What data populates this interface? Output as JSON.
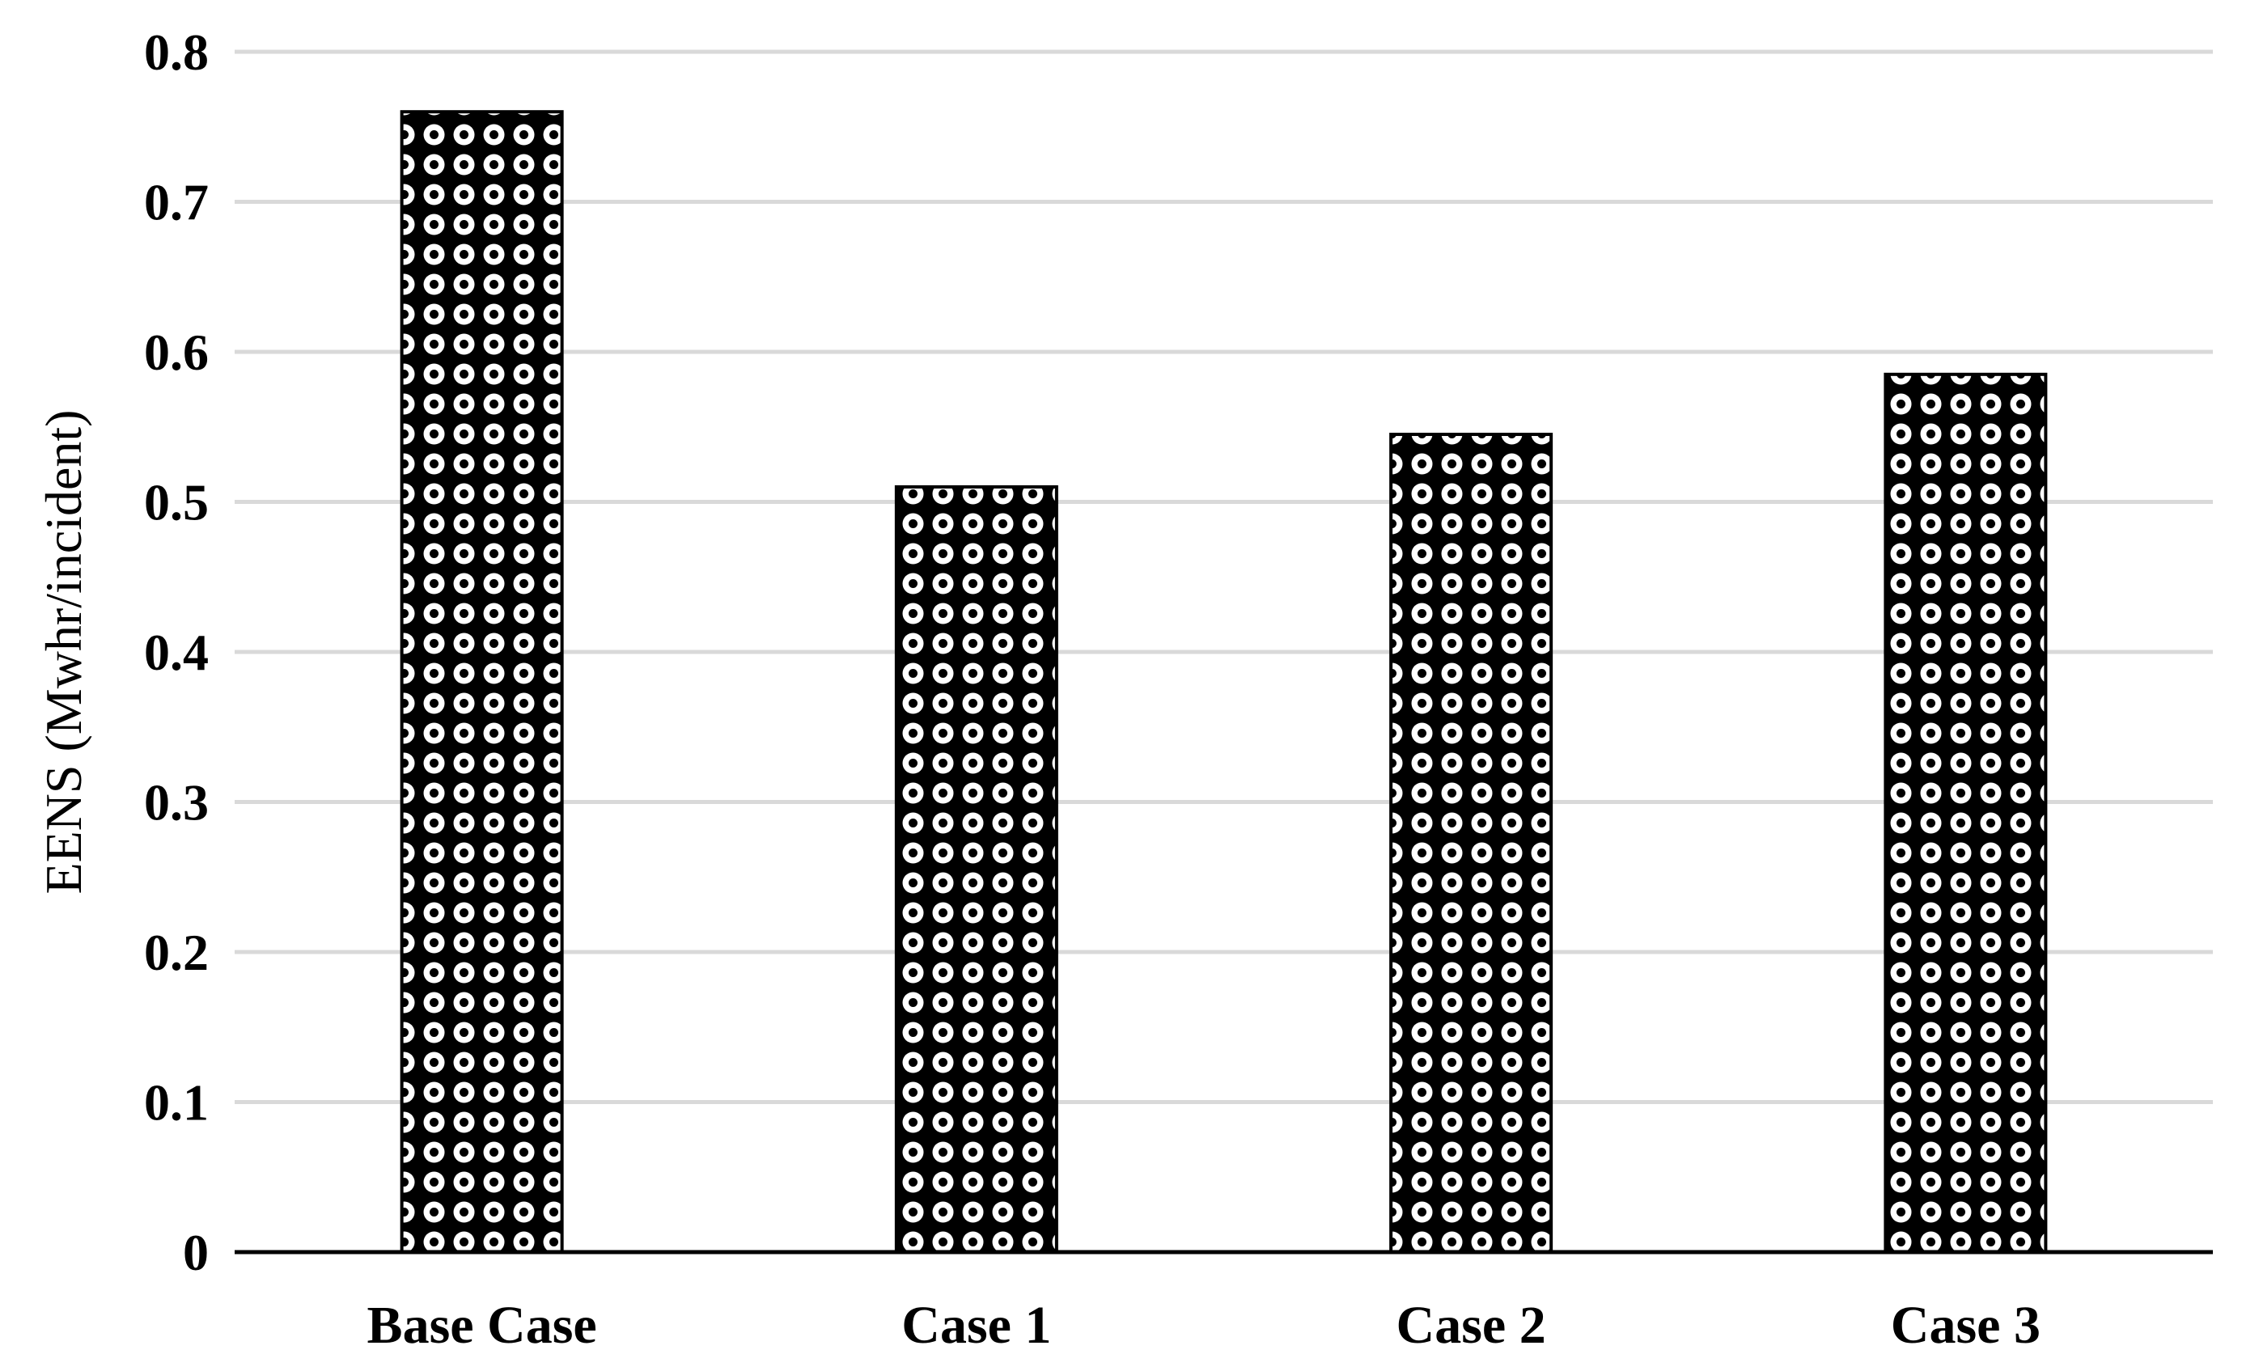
{
  "chart_data": {
    "type": "bar",
    "categories": [
      "Base Case",
      "Case 1",
      "Case 2",
      "Case 3"
    ],
    "values": [
      0.76,
      0.51,
      0.545,
      0.585
    ],
    "title": "",
    "xlabel": "",
    "ylabel": "EENS (Mwhr/incident)",
    "ylim": [
      0,
      0.8
    ],
    "yticks": [
      0,
      0.1,
      0.2,
      0.3,
      0.4,
      0.5,
      0.6,
      0.7,
      0.8
    ],
    "ytick_labels": [
      "0",
      "0.1",
      "0.2",
      "0.3",
      "0.4",
      "0.5",
      "0.6",
      "0.7",
      "0.8"
    ],
    "grid": true,
    "legend": "none",
    "bar_pattern": "black with white circles",
    "colors": {
      "bar": "#000000",
      "pattern": "#ffffff",
      "grid": "#d9d9d9",
      "axis": "#000000"
    }
  }
}
